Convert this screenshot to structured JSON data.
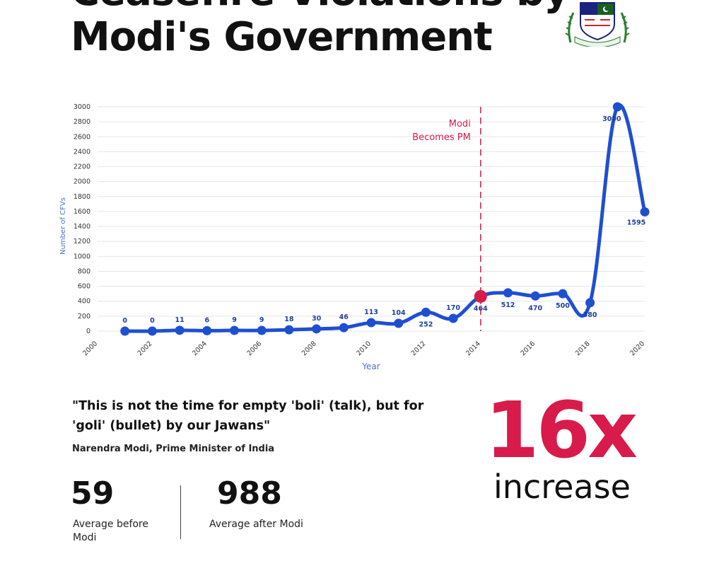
{
  "header": {
    "title_line1": "Ceasefire Violations by",
    "title_line2": "Modi's Government"
  },
  "logo": {
    "name": "institute-crest-icon"
  },
  "colors": {
    "line": "#1f4fd1",
    "highlight": "#d81b4a",
    "gridline": "#e6e6e6",
    "axis_label": "#4a72c9"
  },
  "chart_data": {
    "type": "line",
    "title": "",
    "xlabel": "Year",
    "ylabel": "Number of CFVs",
    "xlim": [
      2000,
      2020
    ],
    "ylim": [
      0,
      3000
    ],
    "xticks": [
      2000,
      2002,
      2004,
      2006,
      2008,
      2010,
      2012,
      2014,
      2016,
      2018,
      2020
    ],
    "yticks": [
      0,
      200,
      400,
      600,
      800,
      1000,
      1200,
      1400,
      1600,
      1800,
      2000,
      2200,
      2400,
      2600,
      2800,
      3000
    ],
    "grid": true,
    "series": [
      {
        "x": [
          2001,
          2002,
          2003,
          2004,
          2005,
          2006,
          2007,
          2008,
          2009,
          2010,
          2011,
          2012,
          2013,
          2014,
          2015,
          2016,
          2017,
          2018,
          2019,
          2020
        ],
        "y": [
          0,
          0,
          11,
          6,
          9,
          9,
          18,
          30,
          46,
          113,
          104,
          252,
          170,
          464,
          512,
          470,
          500,
          380,
          3000,
          1595
        ]
      }
    ],
    "highlight_point": {
      "x": 2014,
      "y": 464
    },
    "annotation": {
      "x": 2014,
      "line1": "Modi",
      "line2": "Becomes PM"
    }
  },
  "quote": {
    "text": "\"This is not the time for empty 'boli' (talk), but for 'goli' (bullet) by our Jawans\"",
    "attribution": "Narendra Modi, Prime Minister of India"
  },
  "stats": {
    "before_value": "59",
    "before_label": "Average before Modi",
    "after_value": "988",
    "after_label": "Average after Modi"
  },
  "callout": {
    "value": "16x",
    "label": "increase"
  }
}
